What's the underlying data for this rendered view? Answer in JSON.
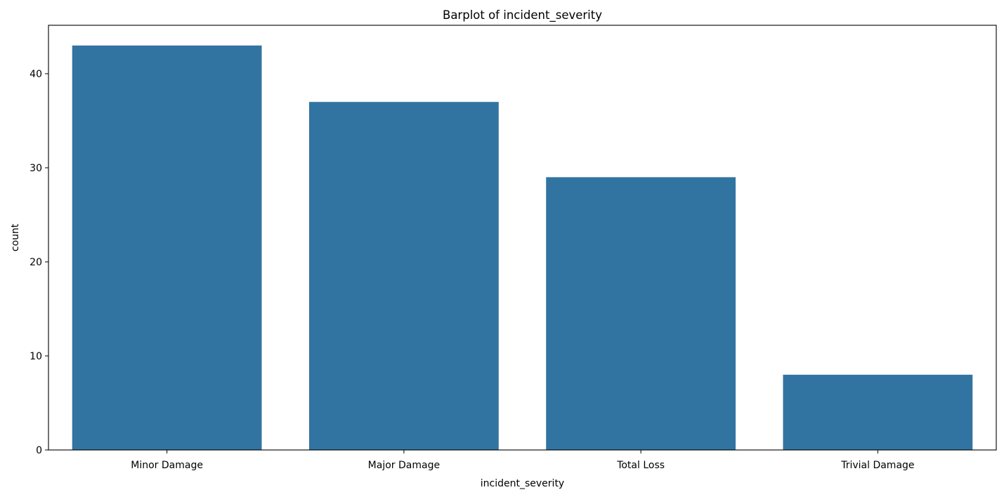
{
  "chart_data": {
    "type": "bar",
    "title": "Barplot of incident_severity",
    "xlabel": "incident_severity",
    "ylabel": "count",
    "categories": [
      "Minor Damage",
      "Major Damage",
      "Total Loss",
      "Trivial Damage"
    ],
    "values": [
      43,
      37,
      29,
      8
    ],
    "ylim": [
      0,
      45.15
    ],
    "yticks": [
      0,
      10,
      20,
      30,
      40
    ],
    "grid": false,
    "bar_color": "#3274a1"
  }
}
